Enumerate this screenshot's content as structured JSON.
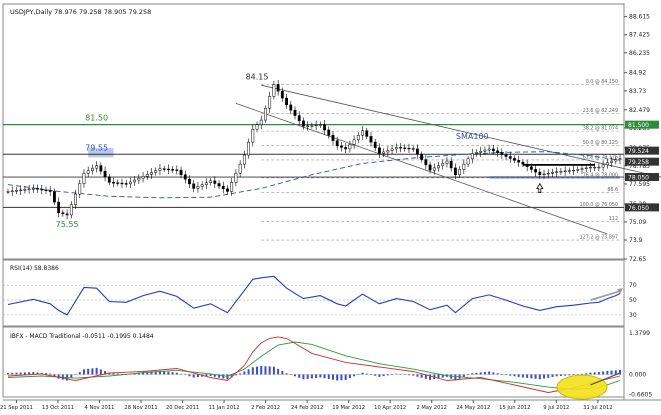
{
  "chart_data": [
    {
      "type": "candlestick",
      "title": "USDJPY,Daily  78.976 79.258 78.905 79.258",
      "x_tick_labels": [
        "21 Sep 2011",
        "13 Oct 2011",
        "4 Nov 2011",
        "28 Nov 2011",
        "20 Dec 2011",
        "11 Jan 2012",
        "2 Feb 2012",
        "24 Feb 2012",
        "19 Mar 2012",
        "10 Apr 2012",
        "2 May 2012",
        "24 May 2012",
        "15 Jun 2012",
        "9 Jul 2012",
        "31 Jul 2012"
      ],
      "y_tick_labels": [
        88.615,
        87.425,
        86.235,
        84.92,
        83.73,
        82.479,
        81.289,
        79.975,
        78.785,
        77.595,
        76.28,
        75.09,
        73.9,
        72.65
      ],
      "ylim": [
        72.65,
        89.25
      ],
      "price_tags": [
        {
          "label": "81.500",
          "value": 81.5,
          "color": "#2e8b3c"
        },
        {
          "label": "79.524",
          "value": 79.524,
          "color": "#333333"
        },
        {
          "label": "79.258",
          "value": 79.258,
          "color": "#333333"
        },
        {
          "label": "78.050",
          "value": 78.05,
          "color": "#333333"
        },
        {
          "label": "76.050",
          "value": 76.05,
          "color": "#333333"
        }
      ],
      "annotations": [
        {
          "text": "84.15",
          "date_index": 59,
          "value": 84.15
        },
        {
          "text": "81.50",
          "date_index": 21,
          "value": 81.5,
          "color": "#2e8b3c"
        },
        {
          "text": "79.55",
          "date_index": 21,
          "value": 79.55,
          "color": "#2b4fb5"
        },
        {
          "text": "75.55",
          "date_index": 14,
          "value": 75.55,
          "color": "#2e8b3c"
        },
        {
          "text": "SMA100",
          "date_index": 110,
          "value": 80.3,
          "color": "#2b4fb5"
        }
      ],
      "fibonacci_levels": [
        {
          "label": "0.0 @ 84.150",
          "value": 84.15
        },
        {
          "label": "23.6 @ 82.249",
          "value": 82.249
        },
        {
          "label": "38.2 @ 81.074",
          "value": 81.074
        },
        {
          "label": "50.0 @ 80.125",
          "value": 80.125
        },
        {
          "label": "61.8 @ 79.175",
          "value": 79.175
        },
        {
          "label": "76.4 @ 78.000",
          "value": 78.0
        },
        {
          "label": "88.6",
          "value": 77.02
        },
        {
          "label": "100.0 @ 76.050",
          "value": 76.05
        },
        {
          "label": "112",
          "value": 75.13
        },
        {
          "label": "127.2 @ 73.897",
          "value": 73.897
        }
      ],
      "horizontal_lines": [
        {
          "name": "resistance-81-50",
          "value": 81.5,
          "color": "#2e8b3c"
        },
        {
          "name": "level-79-55",
          "value": 79.55,
          "color": "#333333"
        },
        {
          "name": "level-78-05",
          "value": 78.05,
          "color": "#333333"
        },
        {
          "name": "level-76-05",
          "value": 76.05,
          "color": "#333333"
        }
      ],
      "highlight_zones": [
        {
          "name": "zone-79-55",
          "x_from": 19,
          "x_to": 25,
          "y_from": 79.35,
          "y_to": 79.95
        },
        {
          "name": "zone-78-05",
          "x_from": 114,
          "x_to": 145,
          "y_from": 77.92,
          "y_to": 78.12
        }
      ],
      "trend_channel": {
        "upper": {
          "x": [
            60,
            157
          ],
          "y": [
            84.1,
            77.9
          ]
        },
        "lower": {
          "x": [
            54,
            142
          ],
          "y": [
            82.9,
            74.3
          ]
        }
      },
      "support_segment": {
        "x": [
          122,
          139
        ],
        "y": [
          78.85,
          78.85
        ]
      },
      "arrows": [
        {
          "name": "bounce-arrow",
          "date_index": 126,
          "value": 77.35,
          "direction": "up"
        }
      ],
      "sma100": {
        "x": [
          0,
          12,
          24,
          36,
          48,
          60,
          72,
          84,
          96,
          108,
          118,
          128,
          138,
          145
        ],
        "y": [
          77.55,
          77.1,
          76.78,
          76.68,
          76.72,
          77.3,
          78.2,
          78.95,
          79.3,
          79.55,
          79.68,
          79.72,
          79.45,
          79.15
        ]
      },
      "price_path": {
        "x": [
          0,
          6,
          10,
          12,
          14,
          18,
          21,
          24,
          28,
          32,
          36,
          40,
          44,
          48,
          52,
          56,
          58,
          60,
          63,
          66,
          70,
          74,
          78,
          80,
          84,
          88,
          92,
          96,
          100,
          104,
          106,
          110,
          114,
          118,
          122,
          126,
          130,
          134,
          138,
          140,
          142,
          144,
          145
        ],
        "y": [
          77.1,
          77.3,
          77.1,
          75.7,
          75.55,
          78.3,
          78.8,
          77.7,
          77.6,
          78.1,
          78.6,
          78.5,
          77.3,
          77.8,
          77.1,
          79.5,
          81.2,
          81.8,
          84.15,
          82.8,
          81.4,
          81.5,
          80.1,
          79.9,
          81.1,
          79.6,
          80.0,
          79.9,
          78.5,
          79.1,
          78.2,
          79.6,
          79.9,
          79.4,
          78.9,
          78.2,
          78.4,
          78.5,
          78.7,
          78.7,
          79.0,
          79.2,
          79.258
        ]
      }
    },
    {
      "type": "line",
      "title": "RSI(14) 58.8386",
      "y_tick_labels": [
        70,
        50,
        30
      ],
      "ylim": [
        15,
        100
      ],
      "levels": [
        70,
        50,
        30
      ],
      "series_values_x": [
        0,
        6,
        10,
        12,
        14,
        18,
        21,
        24,
        28,
        32,
        36,
        40,
        44,
        48,
        52,
        56,
        58,
        60,
        63,
        66,
        70,
        74,
        78,
        80,
        84,
        88,
        92,
        96,
        100,
        104,
        106,
        110,
        114,
        118,
        122,
        126,
        130,
        134,
        138,
        140,
        142,
        144,
        145
      ],
      "series_values_y": [
        44,
        51,
        45,
        36,
        30,
        67,
        66,
        48,
        47,
        56,
        62,
        55,
        39,
        45,
        33,
        63,
        78,
        80,
        82,
        66,
        52,
        56,
        45,
        42,
        58,
        45,
        52,
        48,
        37,
        43,
        33,
        52,
        57,
        50,
        42,
        36,
        41,
        43,
        46,
        47,
        52,
        56,
        58.84
      ],
      "trend_arrow": {
        "x": [
          138,
          145
        ],
        "y": [
          50,
          62
        ]
      }
    },
    {
      "type": "line",
      "title": "IBFX - MACD Traditional  -0.0511 -0.1995 0.1484",
      "y_tick_labels": [
        "1.3799",
        "0.000",
        "-0.6605"
      ],
      "ylim": [
        -0.75,
        1.48
      ],
      "zero_line": 0,
      "histogram": {
        "x": [
          0,
          6,
          10,
          12,
          14,
          18,
          21,
          24,
          28,
          32,
          36,
          40,
          44,
          48,
          52,
          56,
          58,
          60,
          63,
          66,
          70,
          74,
          78,
          80,
          84,
          88,
          92,
          96,
          100,
          104,
          106,
          110,
          114,
          118,
          122,
          126,
          130,
          134,
          138,
          140,
          142,
          144,
          145
        ],
        "y": [
          0.05,
          0.08,
          0.03,
          -0.14,
          -0.2,
          0.17,
          0.22,
          0.06,
          0.0,
          0.08,
          0.12,
          0.06,
          -0.1,
          -0.05,
          -0.16,
          0.1,
          0.24,
          0.28,
          0.26,
          0.04,
          -0.16,
          -0.1,
          -0.2,
          -0.18,
          0.06,
          -0.08,
          0.02,
          -0.04,
          -0.18,
          -0.08,
          -0.2,
          0.04,
          0.1,
          -0.02,
          -0.1,
          -0.16,
          -0.06,
          -0.02,
          0.06,
          0.08,
          0.12,
          0.14,
          0.1484
        ]
      },
      "signal_line": {
        "x": [
          0,
          8,
          16,
          24,
          32,
          40,
          48,
          52,
          56,
          60,
          64,
          68,
          72,
          80,
          88,
          96,
          104,
          112,
          120,
          128,
          134,
          140,
          145
        ],
        "y": [
          -0.1,
          -0.05,
          -0.12,
          -0.05,
          0.06,
          0.14,
          0.02,
          -0.06,
          0.18,
          0.6,
          0.98,
          1.08,
          1.0,
          0.62,
          0.36,
          0.18,
          -0.04,
          -0.14,
          -0.26,
          -0.42,
          -0.5,
          -0.44,
          -0.1995
        ]
      },
      "macd_line": {
        "x": [
          0,
          8,
          16,
          24,
          32,
          40,
          48,
          52,
          56,
          58,
          60,
          62,
          64,
          66,
          72,
          80,
          88,
          96,
          104,
          112,
          120,
          128,
          134,
          140,
          145
        ],
        "y": [
          -0.05,
          0.02,
          -0.2,
          0.05,
          0.1,
          0.2,
          -0.1,
          -0.2,
          0.3,
          0.75,
          1.05,
          1.2,
          1.25,
          1.2,
          0.7,
          0.4,
          0.25,
          0.1,
          -0.2,
          -0.1,
          -0.35,
          -0.6,
          -0.45,
          -0.22,
          -0.0511
        ]
      },
      "highlight": {
        "name": "macd-crossover-ellipse",
        "date_index": 136,
        "value": -0.42
      },
      "trend_arrow": {
        "x": [
          138,
          145
        ],
        "y": [
          -0.35,
          0.05
        ]
      }
    }
  ]
}
